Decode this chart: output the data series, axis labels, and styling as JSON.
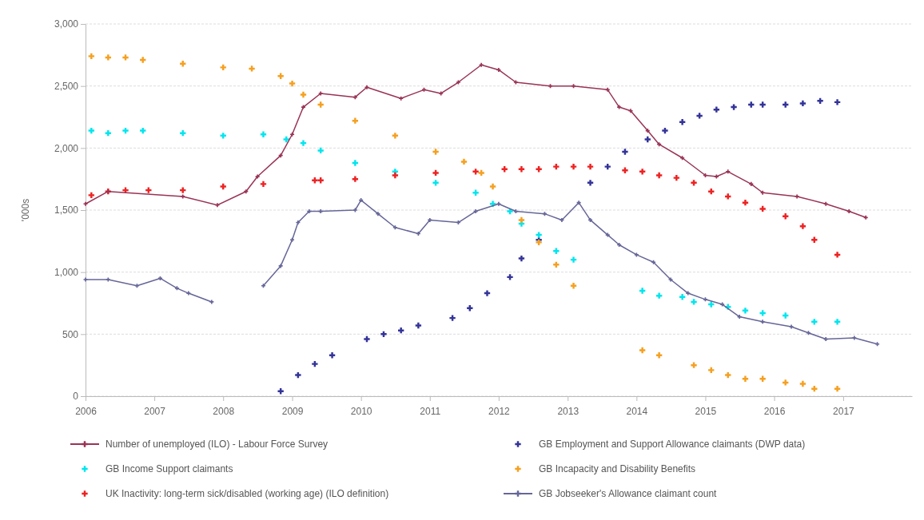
{
  "chart_data": {
    "type": "line",
    "ylabel": "'000s",
    "legend": "bottom",
    "grid": "y",
    "marker": "cross",
    "xlim": [
      "2006-01",
      "2018-01"
    ],
    "xticks": [
      {
        "value": "2006-01",
        "label": "2006"
      },
      {
        "value": "2007-01",
        "label": "2007"
      },
      {
        "value": "2008-01",
        "label": "2008"
      },
      {
        "value": "2009-01",
        "label": "2009"
      },
      {
        "value": "2010-01",
        "label": "2010"
      },
      {
        "value": "2011-01",
        "label": "2011"
      },
      {
        "value": "2012-01",
        "label": "2012"
      },
      {
        "value": "2013-01",
        "label": "2013"
      },
      {
        "value": "2014-01",
        "label": "2014"
      },
      {
        "value": "2015-01",
        "label": "2015"
      },
      {
        "value": "2016-01",
        "label": "2016"
      },
      {
        "value": "2017-01",
        "label": "2017"
      }
    ],
    "ylim": [
      0,
      3000
    ],
    "yticks": [
      0,
      500,
      {
        "value": 1000,
        "label": "1,000"
      },
      {
        "value": 1500,
        "label": "1,500"
      },
      {
        "value": 2000,
        "label": "2,000"
      },
      {
        "value": 2500,
        "label": "2,500"
      },
      {
        "value": 3000,
        "label": "3,000"
      }
    ],
    "series": [
      {
        "name": "Number of unemployed (ILO) - Labour Force Survey",
        "type": "line",
        "color": "#993355",
        "x": [
          "2006-01",
          "2006-05",
          "2007-06",
          "2007-12",
          "2008-05",
          "2008-07",
          "2008-11",
          "2009-01",
          "2009-03",
          "2009-06",
          "2009-12",
          "2010-02",
          "2010-08",
          "2010-12",
          "2011-03",
          "2011-06",
          "2011-10",
          "2012-01",
          "2012-04",
          "2012-10",
          "2013-02",
          "2013-08",
          "2013-10",
          "2013-12",
          "2014-03",
          "2014-05",
          "2014-09",
          "2015-01",
          "2015-03",
          "2015-05",
          "2015-09",
          "2015-11",
          "2016-05",
          "2016-10",
          "2017-02",
          "2017-05"
        ],
        "values": [
          1550,
          1650,
          1610,
          1540,
          1650,
          1770,
          1940,
          2110,
          2330,
          2440,
          2410,
          2490,
          2400,
          2470,
          2440,
          2530,
          2670,
          2630,
          2530,
          2500,
          2500,
          2470,
          2330,
          2300,
          2140,
          2030,
          1920,
          1780,
          1770,
          1810,
          1710,
          1640,
          1610,
          1550,
          1490,
          1440
        ]
      },
      {
        "name": "GB Employment and Support Allowance claimants (DWP data)",
        "type": "scatter",
        "color": "#333399",
        "x": [
          "2008-11",
          "2009-02",
          "2009-05",
          "2009-08",
          "2010-02",
          "2010-05",
          "2010-08",
          "2010-11",
          "2011-05",
          "2011-08",
          "2011-11",
          "2012-03",
          "2012-05",
          "2012-08",
          "2013-05",
          "2013-08",
          "2013-11",
          "2014-03",
          "2014-06",
          "2014-09",
          "2014-12",
          "2015-03",
          "2015-06",
          "2015-09",
          "2015-11",
          "2016-03",
          "2016-06",
          "2016-09",
          "2016-12"
        ],
        "values": [
          40,
          170,
          260,
          330,
          460,
          500,
          530,
          570,
          630,
          710,
          830,
          960,
          1110,
          1260,
          1720,
          1850,
          1970,
          2070,
          2140,
          2210,
          2260,
          2310,
          2330,
          2350,
          2350,
          2350,
          2360,
          2380,
          2370
        ]
      },
      {
        "name": "GB Income Support claimants",
        "type": "scatter",
        "color": "#00e5ee",
        "x": [
          "2006-02",
          "2006-05",
          "2006-08",
          "2006-11",
          "2007-06",
          "2008-01",
          "2008-08",
          "2008-12",
          "2009-03",
          "2009-06",
          "2009-12",
          "2010-07",
          "2011-02",
          "2011-09",
          "2011-12",
          "2012-03",
          "2012-05",
          "2012-08",
          "2012-11",
          "2013-02",
          "2014-02",
          "2014-05",
          "2014-09",
          "2014-11",
          "2015-02",
          "2015-05",
          "2015-08",
          "2015-11",
          "2016-03",
          "2016-08",
          "2016-12"
        ],
        "values": [
          2140,
          2120,
          2140,
          2140,
          2120,
          2100,
          2110,
          2070,
          2040,
          1980,
          1880,
          1810,
          1720,
          1640,
          1550,
          1490,
          1390,
          1300,
          1170,
          1100,
          850,
          810,
          800,
          760,
          740,
          720,
          690,
          670,
          650,
          600,
          600
        ]
      },
      {
        "name": "GB Incapacity and Disability Benefits",
        "type": "scatter",
        "color": "#f5a020",
        "x": [
          "2006-02",
          "2006-05",
          "2006-08",
          "2006-11",
          "2007-06",
          "2008-01",
          "2008-06",
          "2008-11",
          "2009-01",
          "2009-03",
          "2009-06",
          "2009-12",
          "2010-07",
          "2011-02",
          "2011-07",
          "2011-10",
          "2011-12",
          "2012-05",
          "2012-08",
          "2012-11",
          "2013-02",
          "2014-02",
          "2014-05",
          "2014-11",
          "2015-02",
          "2015-05",
          "2015-08",
          "2015-11",
          "2016-03",
          "2016-06",
          "2016-08",
          "2016-12"
        ],
        "values": [
          2740,
          2730,
          2730,
          2710,
          2680,
          2650,
          2640,
          2580,
          2520,
          2430,
          2350,
          2220,
          2100,
          1970,
          1890,
          1800,
          1690,
          1420,
          1240,
          1060,
          890,
          370,
          330,
          250,
          210,
          170,
          140,
          140,
          110,
          100,
          60,
          60
        ]
      },
      {
        "name": "UK Inactivity: long-term sick/disabled (working age) (ILO definition)",
        "type": "scatter",
        "color": "#ee2222",
        "x": [
          "2006-02",
          "2006-05",
          "2006-08",
          "2006-12",
          "2007-06",
          "2008-01",
          "2008-08",
          "2009-05",
          "2009-06",
          "2009-12",
          "2010-07",
          "2011-02",
          "2011-09",
          "2012-02",
          "2012-05",
          "2012-08",
          "2012-11",
          "2013-02",
          "2013-05",
          "2013-11",
          "2014-02",
          "2014-05",
          "2014-08",
          "2014-11",
          "2015-02",
          "2015-05",
          "2015-08",
          "2015-11",
          "2016-03",
          "2016-06",
          "2016-08",
          "2016-12"
        ],
        "values": [
          1620,
          1650,
          1660,
          1660,
          1660,
          1690,
          1710,
          1740,
          1740,
          1750,
          1780,
          1800,
          1810,
          1830,
          1830,
          1830,
          1850,
          1850,
          1850,
          1820,
          1810,
          1780,
          1760,
          1720,
          1650,
          1610,
          1560,
          1510,
          1450,
          1370,
          1260,
          1140
        ]
      },
      {
        "name": "GB Jobseeker's Allowance claimant count",
        "type": "line",
        "color": "#666699",
        "x": [
          "2006-01",
          "2006-05",
          "2006-10",
          "2007-02",
          "2007-05",
          "2007-07",
          "2007-11",
          "2008-03",
          "2008-08",
          "2008-11",
          "2009-01",
          "2009-02",
          "2009-04",
          "2009-06",
          "2009-12",
          "2010-01",
          "2010-04",
          "2010-07",
          "2010-11",
          "2011-01",
          "2011-06",
          "2011-09",
          "2012-01",
          "2012-04",
          "2012-09",
          "2012-12",
          "2013-03",
          "2013-05",
          "2013-08",
          "2013-10",
          "2014-01",
          "2014-04",
          "2014-07",
          "2014-10",
          "2015-01",
          "2015-04",
          "2015-07",
          "2015-11",
          "2016-04",
          "2016-07",
          "2016-10",
          "2017-03",
          "2017-07"
        ],
        "values": [
          940,
          940,
          890,
          950,
          870,
          830,
          760,
          null,
          890,
          1050,
          1260,
          1400,
          1490,
          1490,
          1500,
          1580,
          1470,
          1360,
          1310,
          1420,
          1400,
          1490,
          1550,
          1490,
          1470,
          1420,
          1560,
          1420,
          1300,
          1220,
          1140,
          1080,
          940,
          830,
          780,
          740,
          640,
          600,
          560,
          510,
          460,
          470,
          420
        ]
      }
    ]
  }
}
